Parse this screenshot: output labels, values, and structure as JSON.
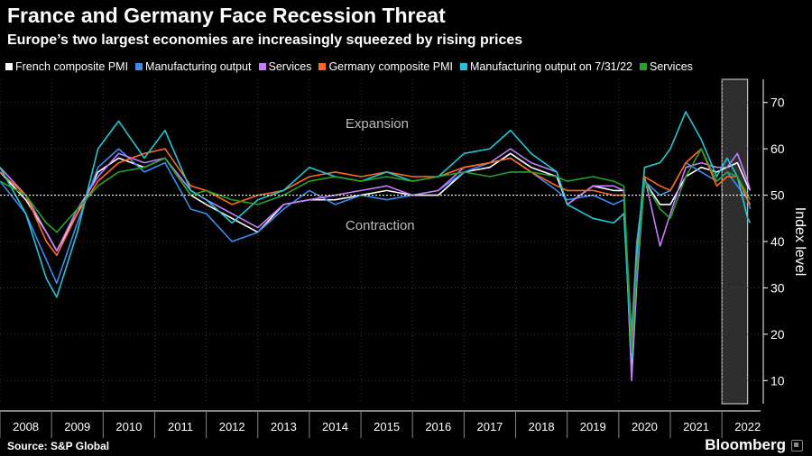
{
  "header": {
    "title": "France and Germany Face Recession Threat",
    "subtitle": "Europe’s two largest economies are increasingly squeezed by rising prices"
  },
  "legend": [
    {
      "label": "French composite PMI",
      "color": "#ffffff"
    },
    {
      "label": "Manufacturing output",
      "color": "#3c8cf0"
    },
    {
      "label": "Services",
      "color": "#c77cff"
    },
    {
      "label": "Germany composite PMI",
      "color": "#ff6a1a"
    },
    {
      "label": "Manufacturing output  on 7/31/22",
      "color": "#22c7d6"
    },
    {
      "label": "Services",
      "color": "#25a32a"
    }
  ],
  "footer": {
    "source": "Source: S&P Global",
    "brand": "Bloomberg"
  },
  "chart_data": {
    "type": "line",
    "ylabel": "Index level",
    "ylim": [
      5,
      75
    ],
    "yticks": [
      10,
      20,
      30,
      40,
      50,
      60,
      70
    ],
    "reference_line": 50,
    "annotations": {
      "upper": "Expansion",
      "lower": "Contraction"
    },
    "xlim": [
      2008.0,
      2022.75
    ],
    "year_labels": [
      "2008",
      "2009",
      "2010",
      "2011",
      "2012",
      "2013",
      "2014",
      "2015",
      "2016",
      "2017",
      "2018",
      "2019",
      "2020",
      "2021",
      "2022"
    ],
    "shaded_region": [
      2022.0,
      2022.5
    ],
    "series": [
      {
        "name": "French composite PMI",
        "color": "#ffffff",
        "x": [
          2008.0,
          2008.5,
          2008.9,
          2009.1,
          2009.5,
          2009.9,
          2010.3,
          2010.8,
          2011.2,
          2011.7,
          2012.0,
          2012.5,
          2013.0,
          2013.5,
          2014.0,
          2014.5,
          2015.0,
          2015.5,
          2016.0,
          2016.5,
          2017.0,
          2017.5,
          2017.9,
          2018.3,
          2018.8,
          2019.0,
          2019.5,
          2019.9,
          2020.1,
          2020.25,
          2020.35,
          2020.5,
          2020.8,
          2021.0,
          2021.3,
          2021.6,
          2021.9,
          2022.1,
          2022.3,
          2022.5,
          2022.55
        ],
        "y": [
          55,
          49,
          42,
          38,
          46,
          55,
          58,
          56,
          58,
          50,
          48,
          45,
          42,
          48,
          49,
          49,
          50,
          51,
          50,
          50,
          55,
          56,
          59,
          56,
          54,
          48,
          52,
          51,
          51,
          11,
          33,
          53,
          48,
          48,
          54,
          56,
          55,
          56,
          57,
          52,
          51
        ]
      },
      {
        "name": "Manufacturing output",
        "color": "#3c8cf0",
        "x": [
          2008.0,
          2008.5,
          2008.9,
          2009.1,
          2009.5,
          2009.9,
          2010.3,
          2010.8,
          2011.2,
          2011.7,
          2012.0,
          2012.5,
          2013.0,
          2013.5,
          2014.0,
          2014.5,
          2015.0,
          2015.5,
          2016.0,
          2016.5,
          2017.0,
          2017.5,
          2017.9,
          2018.3,
          2018.8,
          2019.0,
          2019.5,
          2019.9,
          2020.1,
          2020.25,
          2020.35,
          2020.5,
          2020.8,
          2021.0,
          2021.3,
          2021.6,
          2021.9,
          2022.1,
          2022.3,
          2022.5,
          2022.55
        ],
        "y": [
          53,
          46,
          36,
          31,
          44,
          56,
          60,
          55,
          57,
          47,
          46,
          40,
          42,
          47,
          51,
          48,
          50,
          49,
          50,
          51,
          55,
          57,
          58,
          55,
          51,
          49,
          50,
          48,
          49,
          20,
          40,
          53,
          50,
          51,
          57,
          55,
          53,
          55,
          52,
          49,
          47
        ]
      },
      {
        "name": "Services",
        "color": "#c77cff",
        "x": [
          2008.0,
          2008.5,
          2008.9,
          2009.1,
          2009.5,
          2009.9,
          2010.3,
          2010.8,
          2011.2,
          2011.7,
          2012.0,
          2012.5,
          2013.0,
          2013.5,
          2014.0,
          2014.5,
          2015.0,
          2015.5,
          2016.0,
          2016.5,
          2017.0,
          2017.5,
          2017.9,
          2018.3,
          2018.8,
          2019.0,
          2019.5,
          2019.9,
          2020.1,
          2020.25,
          2020.35,
          2020.5,
          2020.8,
          2021.0,
          2021.3,
          2021.6,
          2021.9,
          2022.1,
          2022.3,
          2022.5,
          2022.55
        ],
        "y": [
          56,
          50,
          42,
          38,
          47,
          54,
          59,
          57,
          58,
          51,
          49,
          46,
          43,
          48,
          49,
          50,
          51,
          52,
          50,
          51,
          56,
          57,
          60,
          57,
          55,
          48,
          52,
          52,
          51,
          10,
          31,
          54,
          39,
          46,
          56,
          57,
          56,
          56,
          59,
          53,
          51
        ]
      },
      {
        "name": "Germany composite PMI",
        "color": "#ff6a1a",
        "x": [
          2008.0,
          2008.5,
          2008.9,
          2009.1,
          2009.5,
          2009.9,
          2010.3,
          2010.8,
          2011.2,
          2011.7,
          2012.0,
          2012.5,
          2013.0,
          2013.5,
          2014.0,
          2014.5,
          2015.0,
          2015.5,
          2016.0,
          2016.5,
          2017.0,
          2017.5,
          2017.9,
          2018.3,
          2018.8,
          2019.0,
          2019.5,
          2019.9,
          2020.1,
          2020.25,
          2020.35,
          2020.5,
          2020.8,
          2021.0,
          2021.3,
          2021.6,
          2021.9,
          2022.1,
          2022.3,
          2022.5,
          2022.55
        ],
        "y": [
          55,
          50,
          40,
          37,
          46,
          53,
          57,
          59,
          60,
          52,
          51,
          48,
          50,
          51,
          54,
          55,
          54,
          55,
          54,
          54,
          56,
          57,
          58,
          55,
          52,
          51,
          51,
          50,
          50,
          17,
          38,
          54,
          52,
          51,
          57,
          60,
          52,
          54,
          54,
          49,
          48
        ]
      },
      {
        "name": "Manufacturing output  on 7/31/22",
        "color": "#22c7d6",
        "x": [
          2008.0,
          2008.5,
          2008.9,
          2009.1,
          2009.5,
          2009.9,
          2010.3,
          2010.8,
          2011.2,
          2011.7,
          2012.0,
          2012.5,
          2013.0,
          2013.5,
          2014.0,
          2014.5,
          2015.0,
          2015.5,
          2016.0,
          2016.5,
          2017.0,
          2017.5,
          2017.9,
          2018.3,
          2018.8,
          2019.0,
          2019.5,
          2019.9,
          2020.1,
          2020.25,
          2020.35,
          2020.5,
          2020.8,
          2021.0,
          2021.3,
          2021.6,
          2021.9,
          2022.1,
          2022.3,
          2022.5,
          2022.55
        ],
        "y": [
          56,
          46,
          32,
          28,
          42,
          60,
          66,
          58,
          64,
          51,
          49,
          44,
          49,
          51,
          56,
          54,
          53,
          55,
          53,
          54,
          59,
          60,
          64,
          59,
          55,
          48,
          45,
          44,
          46,
          15,
          37,
          56,
          57,
          60,
          68,
          62,
          54,
          58,
          54,
          45,
          44
        ]
      },
      {
        "name": "Services",
        "color": "#25a32a",
        "x": [
          2008.0,
          2008.5,
          2008.9,
          2009.1,
          2009.5,
          2009.9,
          2010.3,
          2010.8,
          2011.2,
          2011.7,
          2012.0,
          2012.5,
          2013.0,
          2013.5,
          2014.0,
          2014.5,
          2015.0,
          2015.5,
          2016.0,
          2016.5,
          2017.0,
          2017.5,
          2017.9,
          2018.3,
          2018.8,
          2019.0,
          2019.5,
          2019.9,
          2020.1,
          2020.25,
          2020.35,
          2020.5,
          2020.8,
          2021.0,
          2021.3,
          2021.6,
          2021.9,
          2022.1,
          2022.3,
          2022.5,
          2022.55
        ],
        "y": [
          53,
          50,
          44,
          42,
          47,
          52,
          55,
          56,
          58,
          50,
          51,
          49,
          48,
          50,
          53,
          54,
          53,
          54,
          53,
          54,
          55,
          54,
          55,
          55,
          54,
          53,
          54,
          53,
          52,
          16,
          34,
          53,
          47,
          45,
          54,
          60,
          53,
          55,
          54,
          50,
          49
        ]
      }
    ]
  }
}
